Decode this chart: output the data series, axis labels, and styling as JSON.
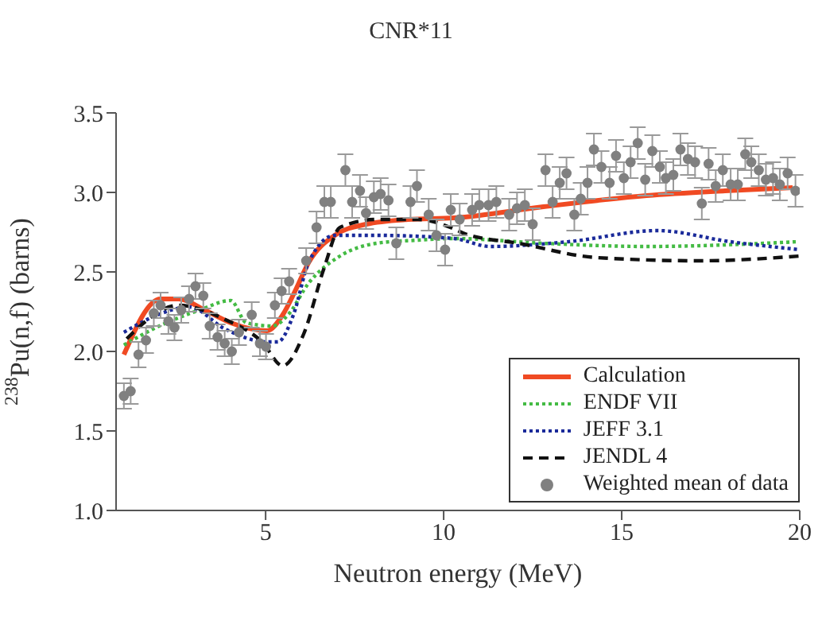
{
  "chart_data": {
    "type": "line",
    "title": "CNR*11",
    "xlabel": "Neutron energy (MeV)",
    "ylabel": "$^{238}$Pu(n,f) (barns)",
    "xlim": [
      0.8,
      20
    ],
    "xticks": [
      5,
      10,
      15,
      20
    ],
    "ylim": [
      1.0,
      3.5
    ],
    "yticks": [
      {
        "value": 1.0,
        "label": "1.0"
      },
      {
        "value": 1.5,
        "label": "1.5"
      },
      {
        "value": 2.0,
        "label": "2.0"
      },
      {
        "value": 2.5,
        "label": "2.5"
      },
      {
        "value": 3.0,
        "label": "3.0"
      },
      {
        "value": 3.5,
        "label": "3.5"
      }
    ],
    "grid": false,
    "legend": "bottom right",
    "series": [
      {
        "name": "Calculation",
        "color": "#f04a23",
        "line_style": "solid",
        "x": [
          1.02,
          2.05,
          2.56,
          3.29,
          4.02,
          5.04,
          5.48,
          5.85,
          6.21,
          6.94,
          7.82,
          9.0,
          10.3,
          12.8,
          15.7,
          17.9,
          19.8
        ],
        "values": [
          1.98,
          2.33,
          2.33,
          2.26,
          2.18,
          2.13,
          2.23,
          2.39,
          2.56,
          2.73,
          2.8,
          2.83,
          2.84,
          2.91,
          2.98,
          3.01,
          3.03
        ]
      },
      {
        "name": "ENDF VII",
        "color": "#44bb44",
        "line_style": "dotted",
        "x": [
          1.02,
          1.83,
          3.14,
          4.02,
          4.46,
          5.19,
          5.63,
          6.21,
          7.09,
          8.11,
          9.28,
          10.3,
          12.8,
          15.7,
          19.95
        ],
        "values": [
          2.04,
          2.14,
          2.26,
          2.32,
          2.18,
          2.16,
          2.23,
          2.43,
          2.6,
          2.68,
          2.7,
          2.71,
          2.68,
          2.66,
          2.69
        ]
      },
      {
        "name": "JEFF 3.1",
        "color": "#1a2a9a",
        "line_style": "dotted",
        "x": [
          1.02,
          1.97,
          2.85,
          3.87,
          5.04,
          5.34,
          5.78,
          6.21,
          6.94,
          8.11,
          10.3,
          11.3,
          13.5,
          16.0,
          18.05,
          20
        ],
        "values": [
          2.12,
          2.23,
          2.28,
          2.14,
          2.06,
          2.06,
          2.23,
          2.56,
          2.73,
          2.73,
          2.71,
          2.66,
          2.69,
          2.76,
          2.69,
          2.64
        ]
      },
      {
        "name": "JENDL 4",
        "color": "#111111",
        "line_style": "dashed",
        "x": [
          1.1,
          2.56,
          3.87,
          4.9,
          5.48,
          6.07,
          6.65,
          7.09,
          8.11,
          9.28,
          10.3,
          10.6,
          12.1,
          14.3,
          17.2,
          20
        ],
        "values": [
          2.08,
          2.29,
          2.2,
          2.06,
          1.91,
          2.11,
          2.53,
          2.78,
          2.83,
          2.83,
          2.77,
          2.74,
          2.68,
          2.59,
          2.57,
          2.6
        ]
      },
      {
        "name": "Weighted mean of data",
        "type": "scatter",
        "color": "#808080",
        "marker": "circle",
        "x": [
          1.02,
          1.21,
          1.43,
          1.64,
          1.86,
          2.05,
          2.27,
          2.44,
          2.63,
          2.85,
          3.03,
          3.25,
          3.43,
          3.65,
          3.85,
          4.05,
          4.25,
          4.61,
          4.84,
          5.01,
          5.26,
          5.45,
          5.66,
          6.14,
          6.43,
          6.65,
          6.83,
          7.24,
          7.43,
          7.65,
          7.82,
          8.04,
          8.23,
          8.45,
          8.67,
          9.07,
          9.25,
          9.58,
          9.8,
          10.04,
          10.2,
          10.45,
          10.8,
          11.0,
          11.26,
          11.48,
          11.84,
          12.06,
          12.28,
          12.5,
          12.86,
          13.06,
          13.26,
          13.45,
          13.67,
          13.85,
          14.04,
          14.22,
          14.43,
          14.66,
          14.84,
          15.06,
          15.25,
          15.45,
          15.66,
          15.86,
          16.07,
          16.24,
          16.45,
          16.65,
          16.86,
          17.06,
          17.25,
          17.44,
          17.64,
          17.84,
          18.06,
          18.26,
          18.47,
          18.64,
          18.85,
          19.05,
          19.25,
          19.44,
          19.66,
          19.88
        ],
        "values": [
          1.72,
          1.75,
          1.98,
          2.07,
          2.24,
          2.29,
          2.19,
          2.15,
          2.26,
          2.33,
          2.41,
          2.35,
          2.16,
          2.09,
          2.05,
          2.0,
          2.12,
          2.23,
          2.05,
          2.03,
          2.29,
          2.38,
          2.44,
          2.57,
          2.78,
          2.94,
          2.94,
          3.14,
          2.94,
          3.01,
          2.87,
          2.97,
          2.99,
          2.95,
          2.68,
          2.94,
          3.04,
          2.86,
          2.73,
          2.64,
          2.89,
          2.83,
          2.89,
          2.92,
          2.92,
          2.94,
          2.86,
          2.9,
          2.92,
          2.8,
          3.14,
          2.94,
          3.06,
          3.12,
          2.86,
          2.96,
          3.06,
          3.27,
          3.16,
          3.06,
          3.23,
          3.09,
          3.19,
          3.31,
          3.08,
          3.26,
          3.16,
          3.09,
          3.11,
          3.27,
          3.21,
          3.19,
          2.93,
          3.18,
          3.04,
          3.14,
          3.05,
          3.05,
          3.24,
          3.19,
          3.14,
          3.08,
          3.09,
          3.05,
          3.12,
          3.01
        ],
        "errors": [
          0.08,
          0.08,
          0.08,
          0.08,
          0.08,
          0.08,
          0.08,
          0.08,
          0.08,
          0.08,
          0.08,
          0.08,
          0.08,
          0.08,
          0.08,
          0.08,
          0.08,
          0.08,
          0.08,
          0.08,
          0.08,
          0.08,
          0.08,
          0.08,
          0.1,
          0.1,
          0.1,
          0.1,
          0.1,
          0.1,
          0.1,
          0.1,
          0.1,
          0.1,
          0.1,
          0.1,
          0.1,
          0.1,
          0.1,
          0.1,
          0.1,
          0.1,
          0.1,
          0.1,
          0.1,
          0.1,
          0.1,
          0.1,
          0.1,
          0.1,
          0.1,
          0.1,
          0.1,
          0.1,
          0.1,
          0.1,
          0.1,
          0.1,
          0.1,
          0.1,
          0.1,
          0.1,
          0.1,
          0.1,
          0.1,
          0.1,
          0.1,
          0.1,
          0.1,
          0.1,
          0.1,
          0.1,
          0.1,
          0.1,
          0.1,
          0.1,
          0.1,
          0.1,
          0.1,
          0.1,
          0.1,
          0.1,
          0.1,
          0.1,
          0.1,
          0.1
        ]
      }
    ]
  }
}
